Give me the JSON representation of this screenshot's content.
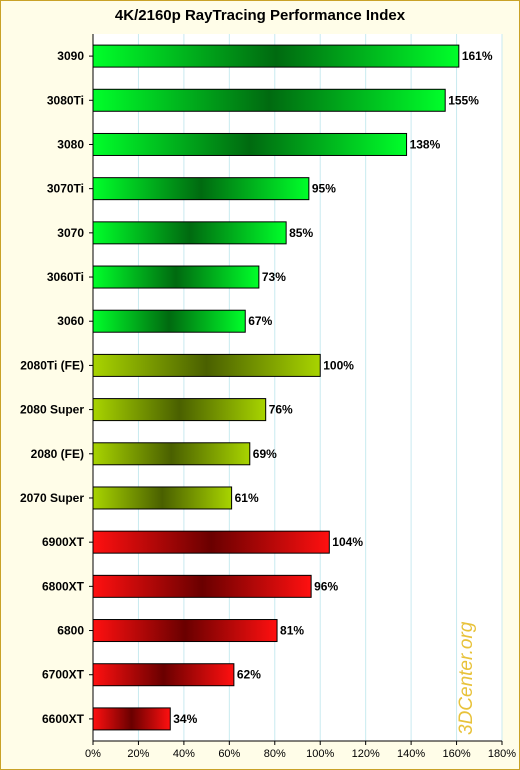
{
  "chart_data": {
    "type": "bar",
    "orientation": "horizontal",
    "title": "4K/2160p RayTracing Performance Index",
    "categories": [
      "3090",
      "3080Ti",
      "3080",
      "3070Ti",
      "3070",
      "3060Ti",
      "3060",
      "2080Ti (FE)",
      "2080 Super",
      "2080 (FE)",
      "2070 Super",
      "6900XT",
      "6800XT",
      "6800",
      "6700XT",
      "6600XT"
    ],
    "values": [
      161,
      155,
      138,
      95,
      85,
      73,
      67,
      100,
      76,
      69,
      61,
      104,
      96,
      81,
      62,
      34
    ],
    "value_labels": [
      "161%",
      "155%",
      "138%",
      "95%",
      "85%",
      "73%",
      "67%",
      "100%",
      "76%",
      "69%",
      "61%",
      "104%",
      "96%",
      "81%",
      "62%",
      "34%"
    ],
    "groups": [
      "green",
      "green",
      "green",
      "green",
      "green",
      "green",
      "green",
      "olive",
      "olive",
      "olive",
      "olive",
      "red",
      "red",
      "red",
      "red",
      "red"
    ],
    "x_ticks": [
      "0%",
      "20%",
      "40%",
      "60%",
      "80%",
      "100%",
      "120%",
      "140%",
      "160%",
      "180%"
    ],
    "xlim": [
      0,
      180
    ],
    "grid": "vertical",
    "colors": {
      "green": [
        "#00ff2a",
        "#006a10"
      ],
      "olive": [
        "#a8d400",
        "#4a6000"
      ],
      "red": [
        "#ff1010",
        "#6a0000"
      ],
      "grid": "#c8eaf0",
      "background": "#fffde8",
      "border": "#c9a227"
    }
  },
  "watermark": "3DCenter.org"
}
